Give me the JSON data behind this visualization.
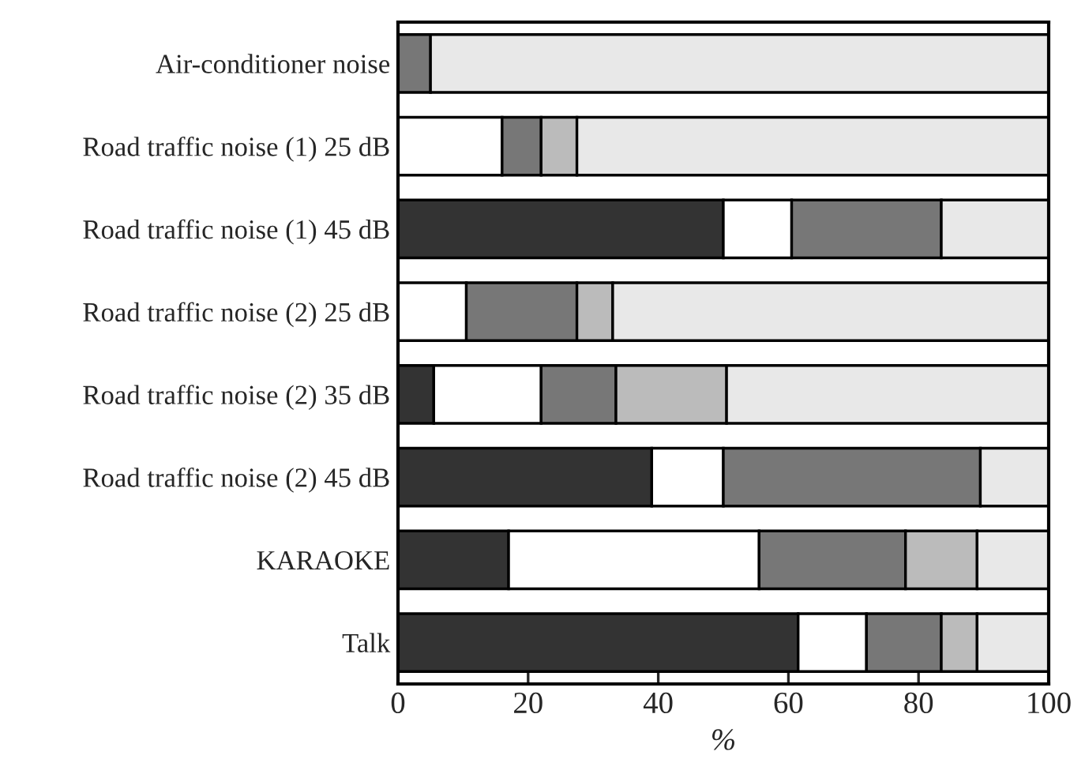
{
  "chart_data": {
    "type": "bar",
    "orientation": "horizontal",
    "stacked": true,
    "xlabel": "%",
    "xlim": [
      0,
      100
    ],
    "xticks": [
      0,
      20,
      40,
      60,
      80,
      100
    ],
    "grid": false,
    "legend": false,
    "categories": [
      "Air-conditioner noise",
      "Road traffic noise (1) 25 dB",
      "Road traffic noise (1) 45 dB",
      "Road traffic noise (2) 25 dB",
      "Road traffic noise (2) 35 dB",
      "Road traffic noise (2) 45 dB",
      "KARAOKE",
      "Talk"
    ],
    "series": [
      {
        "color": "#333333",
        "values": [
          0,
          0,
          50,
          0,
          5.5,
          39,
          17,
          61.5
        ]
      },
      {
        "color": "#ffffff",
        "values": [
          0,
          16,
          10.5,
          10.5,
          16.5,
          11,
          38.5,
          10.5
        ]
      },
      {
        "color": "#777777",
        "values": [
          5,
          6,
          23,
          17,
          11.5,
          39.5,
          22.5,
          11.5
        ]
      },
      {
        "color": "#bbbbbb",
        "values": [
          0,
          5.5,
          0,
          5.5,
          17,
          0,
          11,
          5.5
        ]
      },
      {
        "color": "#e8e8e8",
        "values": [
          95,
          72.5,
          16.5,
          67,
          49.5,
          10.5,
          11,
          11
        ]
      }
    ]
  }
}
